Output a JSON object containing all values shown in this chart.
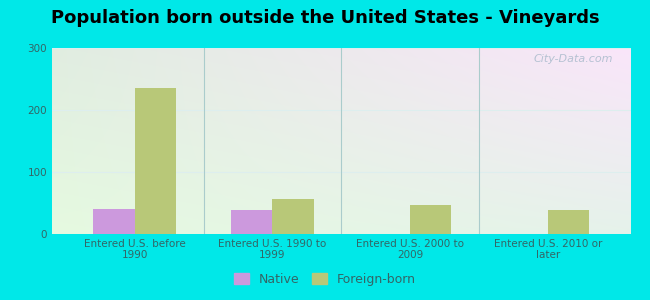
{
  "title": "Population born outside the United States - Vineyards",
  "categories": [
    "Entered U.S. before\n1990",
    "Entered U.S. 1990 to\n1999",
    "Entered U.S. 2000 to\n2009",
    "Entered U.S. 2010 or\nlater"
  ],
  "native_values": [
    40,
    38,
    0,
    0
  ],
  "foreign_values": [
    235,
    57,
    47,
    38
  ],
  "native_color": "#cc99dd",
  "foreign_color": "#b8c878",
  "bg_color_topleft": "#c8e8c0",
  "bg_color_topright": "#e8f4f8",
  "bg_color_bottom": "#d8f0d8",
  "outer_bg": "#00e8e8",
  "divider_color": "#aacccc",
  "grid_color": "#ddeeee",
  "tick_color": "#336666",
  "watermark_color": "#aabbcc",
  "ylim": [
    0,
    300
  ],
  "yticks": [
    0,
    100,
    200,
    300
  ],
  "bar_width": 0.3,
  "title_fontsize": 13,
  "tick_fontsize": 7.5,
  "legend_fontsize": 9,
  "watermark": "City-Data.com"
}
